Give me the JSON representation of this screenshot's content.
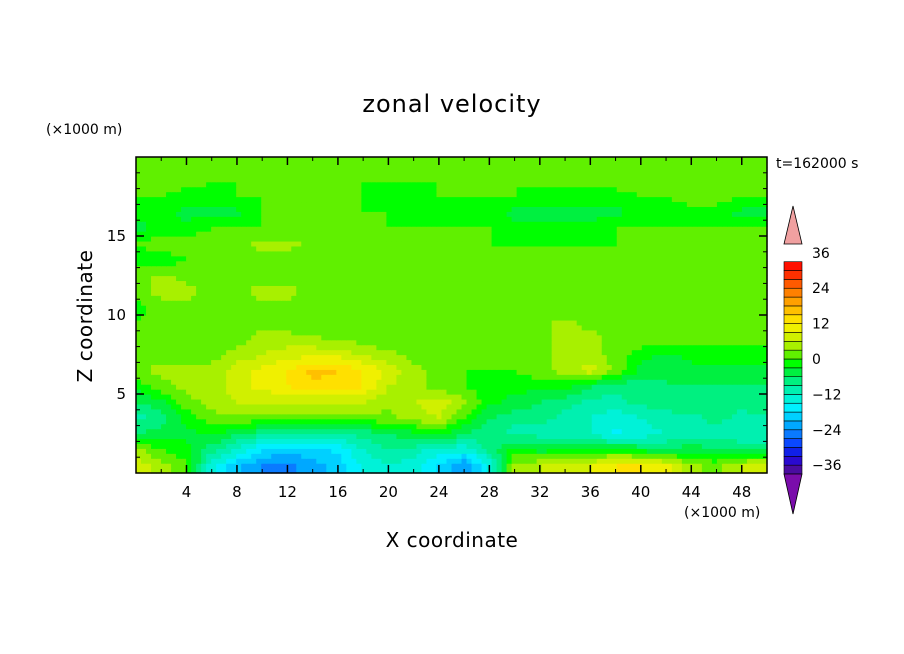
{
  "chart_data": {
    "type": "heatmap",
    "title": "zonal velocity",
    "xlabel": "X coordinate",
    "ylabel": "Z coordinate",
    "x_unit": "(×1000 m)",
    "y_unit": "(×1000 m)",
    "time_label": "t=162000 s",
    "xlim": [
      0,
      50
    ],
    "ylim": [
      0,
      20
    ],
    "x_ticks": [
      4,
      8,
      12,
      16,
      20,
      24,
      28,
      32,
      36,
      40,
      44,
      48
    ],
    "y_ticks": [
      5,
      10,
      15
    ],
    "colorbar": {
      "levels": [
        -42,
        -39,
        -36,
        -33,
        -30,
        -27,
        -24,
        -21,
        -18,
        -15,
        -12,
        -9,
        -6,
        -3,
        0,
        3,
        6,
        9,
        12,
        15,
        18,
        21,
        24,
        27,
        30,
        33,
        36,
        39,
        42
      ],
      "tick_labels": [
        "36",
        "24",
        "12",
        "0",
        "−12",
        "−24",
        "−36"
      ],
      "tick_values": [
        36,
        24,
        12,
        0,
        -12,
        -24,
        -36
      ],
      "colors": [
        "#7a0dab",
        "#4a0ca0",
        "#2a0ad0",
        "#1020e8",
        "#0a48ff",
        "#0a7aff",
        "#00a8ff",
        "#00d0ff",
        "#00f0ff",
        "#00f2d8",
        "#00f0b0",
        "#00f080",
        "#00f040",
        "#00ff00",
        "#60f000",
        "#a8f000",
        "#d0f000",
        "#f0f000",
        "#ffe000",
        "#ffc000",
        "#ffa000",
        "#ff8000",
        "#ff5a00",
        "#ff3000",
        "#ff1000",
        "#f0a0a0"
      ],
      "extend": "both"
    },
    "description_note": "",
    "field_samples_z_rows_x_cols": {
      "x": [
        0,
        2,
        4,
        6,
        8,
        10,
        12,
        14,
        16,
        18,
        20,
        22,
        24,
        26,
        28,
        30,
        32,
        34,
        36,
        38,
        40,
        42,
        44,
        46,
        48,
        50
      ],
      "z": [
        0.5,
        1.5,
        2.5,
        3.5,
        4.5,
        5.5,
        6.5,
        7.5,
        8.5,
        9.5,
        10.5,
        11.5,
        12.5,
        13.5,
        14.5,
        15.5,
        16.5,
        17.5,
        18.5,
        19.5
      ],
      "values": [
        [
          8,
          4,
          1,
          -14,
          -20,
          -24,
          -25,
          -22,
          -20,
          -14,
          -12,
          -14,
          -18,
          -24,
          -14,
          4,
          6,
          8,
          9,
          12,
          12,
          10,
          4,
          2,
          6,
          8
        ],
        [
          4,
          0,
          -2,
          -8,
          -12,
          -18,
          -20,
          -19,
          -17,
          -12,
          -9,
          -10,
          -14,
          -14,
          -8,
          -2,
          -4,
          -4,
          -4,
          -2,
          -4,
          -6,
          -4,
          -6,
          -6,
          -6
        ],
        [
          -6,
          -4,
          -4,
          -2,
          -6,
          -8,
          -10,
          -10,
          -9,
          -8,
          -6,
          -4,
          -2,
          -6,
          -8,
          -10,
          -10,
          -12,
          -12,
          -16,
          -14,
          -12,
          -10,
          -10,
          -12,
          -12
        ],
        [
          -10,
          -8,
          -2,
          2,
          2,
          2,
          2,
          2,
          2,
          2,
          2,
          4,
          6,
          0,
          -6,
          -8,
          -8,
          -10,
          -12,
          -14,
          -12,
          -10,
          -10,
          -8,
          -10,
          -10
        ],
        [
          -6,
          -4,
          2,
          4,
          6,
          6,
          6,
          6,
          6,
          6,
          4,
          6,
          8,
          4,
          -2,
          -4,
          -6,
          -8,
          -10,
          -10,
          -8,
          -8,
          -6,
          -8,
          -8,
          -6
        ],
        [
          -2,
          2,
          4,
          4,
          8,
          10,
          12,
          14,
          14,
          12,
          6,
          4,
          2,
          0,
          -2,
          -2,
          -2,
          -2,
          -6,
          -8,
          -8,
          -6,
          -6,
          -6,
          -6,
          -6
        ],
        [
          2,
          4,
          4,
          4,
          8,
          10,
          12,
          16,
          15,
          12,
          8,
          4,
          2,
          0,
          0,
          0,
          2,
          4,
          8,
          2,
          -4,
          -6,
          -4,
          -4,
          -4,
          -4
        ],
        [
          2,
          2,
          2,
          2,
          4,
          6,
          8,
          8,
          8,
          6,
          4,
          2,
          0,
          0,
          0,
          0,
          2,
          4,
          4,
          2,
          -2,
          -4,
          -2,
          -2,
          -2,
          -2
        ],
        [
          2,
          2,
          1,
          0,
          2,
          4,
          4,
          4,
          2,
          2,
          0,
          0,
          0,
          0,
          0,
          0,
          2,
          4,
          4,
          2,
          2,
          2,
          2,
          2,
          2,
          2
        ],
        [
          0,
          2,
          2,
          0,
          2,
          2,
          2,
          0,
          0,
          0,
          0,
          0,
          0,
          0,
          0,
          0,
          2,
          4,
          2,
          2,
          2,
          2,
          2,
          2,
          2,
          2
        ],
        [
          -2,
          2,
          2,
          2,
          2,
          2,
          2,
          0,
          0,
          0,
          0,
          0,
          0,
          0,
          0,
          0,
          0,
          0,
          0,
          2,
          2,
          2,
          2,
          2,
          2,
          2
        ],
        [
          2,
          4,
          4,
          2,
          2,
          4,
          4,
          2,
          0,
          0,
          0,
          0,
          0,
          0,
          0,
          0,
          0,
          0,
          0,
          0,
          2,
          2,
          2,
          2,
          2,
          2
        ],
        [
          2,
          4,
          2,
          2,
          2,
          2,
          2,
          2,
          0,
          0,
          0,
          0,
          0,
          0,
          0,
          0,
          0,
          0,
          0,
          0,
          0,
          0,
          0,
          0,
          0,
          0
        ],
        [
          -2,
          -2,
          0,
          0,
          2,
          2,
          2,
          0,
          0,
          0,
          0,
          0,
          0,
          0,
          0,
          0,
          0,
          0,
          0,
          0,
          0,
          0,
          0,
          0,
          0,
          0
        ],
        [
          0,
          2,
          2,
          2,
          2,
          4,
          4,
          2,
          2,
          0,
          0,
          0,
          2,
          2,
          0,
          0,
          0,
          0,
          0,
          0,
          0,
          0,
          0,
          0,
          0,
          0
        ],
        [
          -4,
          -2,
          -2,
          0,
          0,
          0,
          0,
          0,
          0,
          0,
          0,
          0,
          0,
          0,
          0,
          -2,
          -2,
          -2,
          -2,
          0,
          0,
          0,
          0,
          0,
          0,
          0
        ],
        [
          -2,
          -2,
          -4,
          -4,
          -4,
          0,
          0,
          0,
          0,
          0,
          0,
          -2,
          -2,
          -2,
          -2,
          -4,
          -4,
          -4,
          -4,
          -4,
          -2,
          -2,
          -2,
          -2,
          -4,
          -4
        ],
        [
          0,
          0,
          -2,
          -2,
          0,
          0,
          2,
          2,
          0,
          0,
          -2,
          -2,
          0,
          0,
          0,
          0,
          -2,
          -2,
          -2,
          -2,
          0,
          0,
          2,
          2,
          0,
          0
        ],
        [
          2,
          2,
          2,
          0,
          0,
          0,
          0,
          0,
          0,
          0,
          0,
          0,
          0,
          0,
          0,
          0,
          2,
          2,
          2,
          2,
          2,
          2,
          2,
          2,
          2,
          2
        ],
        [
          0,
          0,
          0,
          0,
          0,
          0,
          0,
          0,
          0,
          0,
          0,
          0,
          0,
          0,
          0,
          0,
          0,
          0,
          0,
          0,
          0,
          0,
          0,
          0,
          0,
          0
        ]
      ]
    }
  }
}
